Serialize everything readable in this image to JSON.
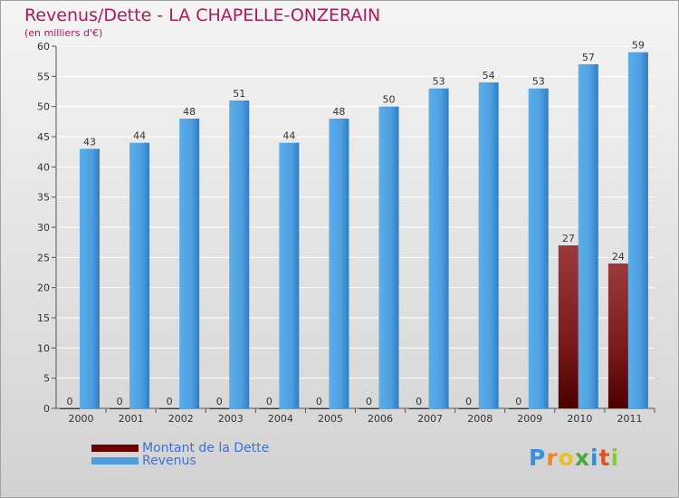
{
  "chart_data": {
    "type": "bar",
    "title": "Revenus/Dette - LA CHAPELLE-ONZERAIN",
    "subtitle": "(en milliers d'€)",
    "categories": [
      "2000",
      "2001",
      "2002",
      "2003",
      "2004",
      "2005",
      "2006",
      "2007",
      "2008",
      "2009",
      "2010",
      "2011"
    ],
    "series": [
      {
        "name": "Montant de la Dette",
        "color": "#6b0000",
        "values": [
          0,
          0,
          0,
          0,
          0,
          0,
          0,
          0,
          0,
          0,
          27,
          24
        ]
      },
      {
        "name": "Revenus",
        "color": "#4f9fe0",
        "values": [
          43,
          44,
          48,
          51,
          44,
          48,
          50,
          53,
          54,
          53,
          57,
          59
        ]
      }
    ],
    "ylim": [
      0,
      60
    ],
    "yticks": [
      0,
      5,
      10,
      15,
      20,
      25,
      30,
      35,
      40,
      45,
      50,
      55,
      60
    ],
    "grid": true,
    "legend": "bottom-left"
  },
  "logo": {
    "letters": [
      "P",
      "r",
      "o",
      "x",
      "i",
      "t",
      "i"
    ],
    "colors": [
      "#3a8fd8",
      "#f08a1c",
      "#e8c12a",
      "#4aa83c",
      "#2f8fd0",
      "#e0532a",
      "#8cc63f"
    ]
  }
}
